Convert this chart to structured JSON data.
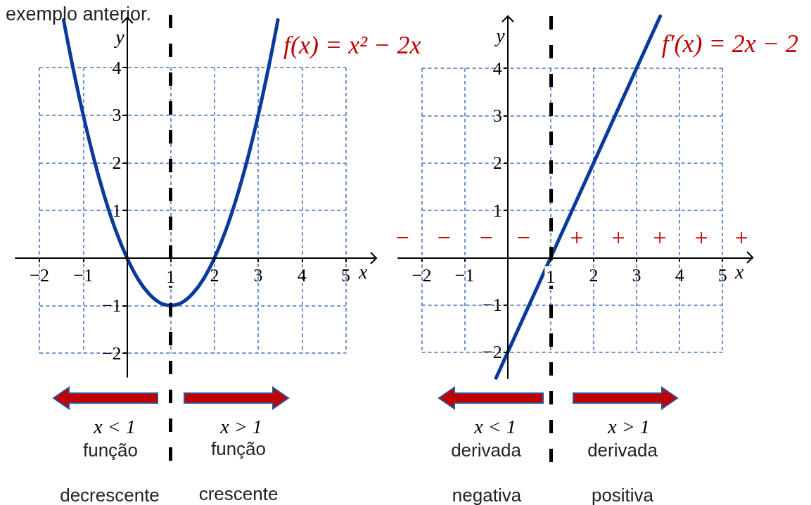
{
  "chart_data": [
    {
      "type": "line",
      "annotations": [
        "exemplo anterior.",
        "x < 1",
        "função",
        "decrescente",
        "x > 1",
        "função",
        "crescente"
      ],
      "xlabel": "x",
      "ylabel": "y",
      "series": [
        {
          "name": "f(x) = x² − 2x",
          "color": "#0a3a9a",
          "x": [
            -1.45,
            -1.25,
            -1,
            -0.75,
            -0.5,
            -0.25,
            0,
            0.25,
            0.5,
            0.75,
            1,
            1.25,
            1.5,
            1.75,
            2,
            2.25,
            2.5,
            2.75,
            3,
            3.25,
            3.45
          ],
          "values": [
            5.0,
            4.06,
            3,
            2.06,
            1.25,
            0.56,
            0,
            -0.44,
            -0.75,
            -0.94,
            -1,
            -0.94,
            -0.75,
            -0.44,
            0,
            0.56,
            1.25,
            2.06,
            3,
            4.06,
            5.0
          ]
        }
      ],
      "xlim": [
        -2.55,
        5.7
      ],
      "ylim": [
        -2.5,
        5.05
      ],
      "xticks": [
        {
          "value": -2,
          "label": "−2"
        },
        {
          "value": -1,
          "label": "−1"
        },
        {
          "value": 0,
          "label": null
        },
        1,
        2,
        3,
        4,
        5
      ],
      "yticks": [
        {
          "value": -2,
          "label": "−2"
        },
        {
          "value": -1,
          "label": "−1"
        },
        {
          "value": 0,
          "label": null
        },
        1,
        2,
        3,
        4
      ],
      "grid": true,
      "ref_lines": [
        {
          "axis": "x",
          "value": 1,
          "color": "#000000",
          "line_style": "dashed"
        }
      ],
      "marker": "none",
      "line_style": "solid"
    },
    {
      "type": "line",
      "annotations": [
        "−",
        "−",
        "−",
        "−",
        "+",
        "+",
        "+",
        "+",
        "+",
        "x < 1",
        "derivada",
        "negativa",
        "x > 1",
        "derivada",
        "positiva"
      ],
      "xlabel": "x",
      "ylabel": "y",
      "series": [
        {
          "name": "f′(x) = 2x − 2",
          "color": "#0a3a9a",
          "x": [
            -0.27,
            1,
            3.55
          ],
          "values": [
            -2.54,
            0,
            5.1
          ]
        }
      ],
      "xlim": [
        -2.55,
        5.7
      ],
      "ylim": [
        -2.55,
        5.1
      ],
      "xticks": [
        {
          "value": -2,
          "label": "−2"
        },
        {
          "value": -1,
          "label": "−1"
        },
        {
          "value": 0,
          "label": null
        },
        1,
        2,
        3,
        4,
        5
      ],
      "yticks": [
        {
          "value": -2,
          "label": "−2"
        },
        {
          "value": -1,
          "label": "−1"
        },
        {
          "value": 0,
          "label": null
        },
        1,
        2,
        3,
        4
      ],
      "grid": true,
      "ref_lines": [
        {
          "axis": "x",
          "value": 1,
          "color": "#000000",
          "line_style": "dashed"
        }
      ],
      "marker": "none",
      "line_style": "solid"
    }
  ]
}
